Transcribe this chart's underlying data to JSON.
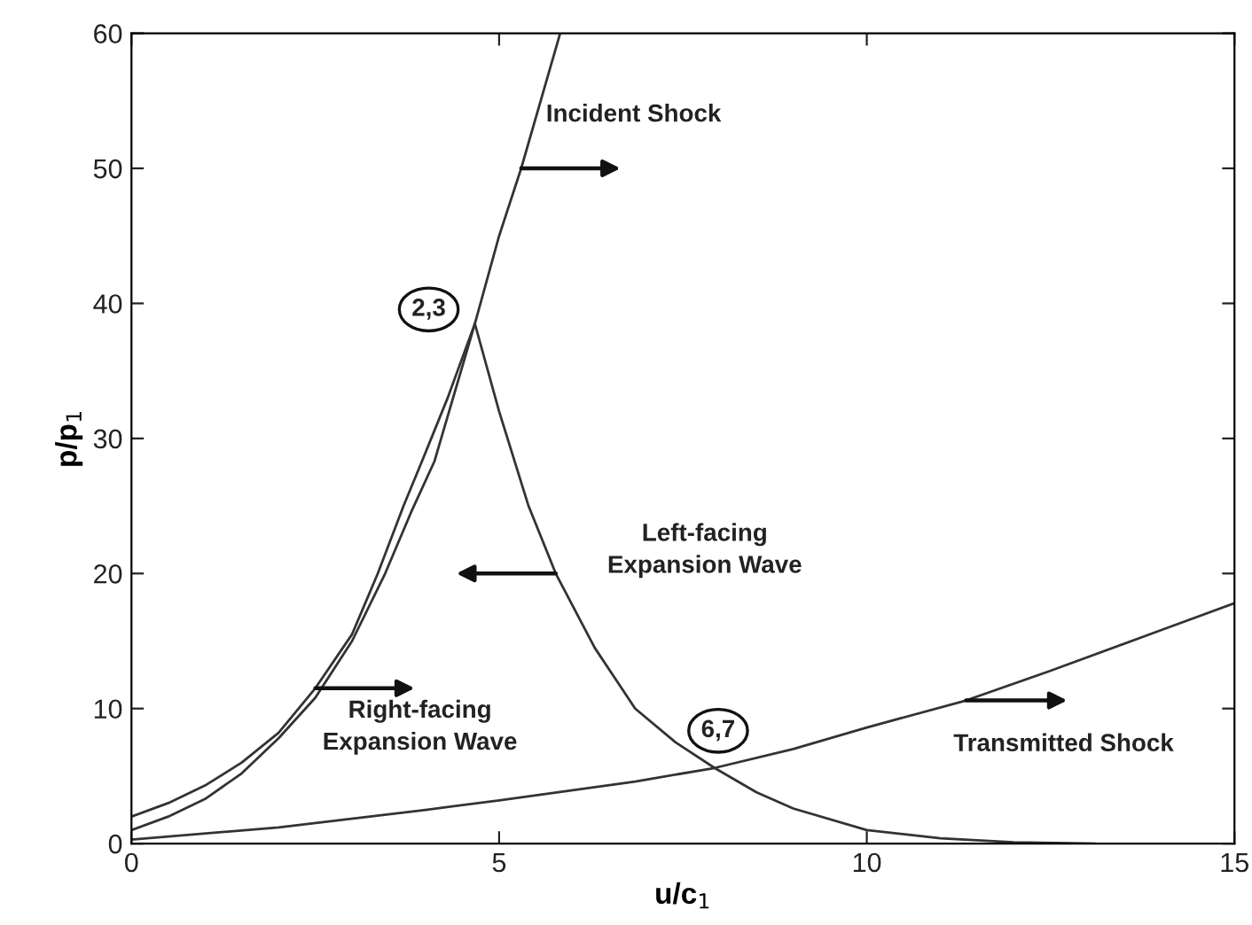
{
  "chart_data": {
    "type": "line",
    "xlabel": "u/c$_{1}$",
    "ylabel": "p/p$_{1}$",
    "xlim": [
      0,
      15
    ],
    "ylim": [
      0,
      60
    ],
    "xticks": [
      0,
      5,
      10,
      15
    ],
    "yticks": [
      0,
      10,
      20,
      30,
      40,
      50,
      60
    ],
    "series": [
      {
        "color": "#333333",
        "x": [
          0,
          0.5,
          1,
          1.5,
          2,
          2.5,
          3,
          3.45,
          3.8,
          4.12,
          4.67,
          5,
          5.3,
          5.83
        ],
        "values": [
          1,
          2,
          3.3,
          5.2,
          7.8,
          10.8,
          15,
          20,
          24.5,
          28.3,
          38.5,
          45,
          50,
          60
        ]
      },
      {
        "color": "#333333",
        "x": [
          0,
          0.5,
          1,
          1.5,
          2,
          2.5,
          3,
          3.35,
          3.7,
          3.95,
          4.3,
          4.67
        ],
        "values": [
          2,
          3,
          4.3,
          6,
          8.2,
          11.5,
          15.5,
          20,
          25,
          28.3,
          33,
          38.5
        ]
      },
      {
        "color": "#333333",
        "x": [
          4.67,
          5,
          5.4,
          5.77,
          6.3,
          6.85,
          7.4,
          7.93,
          8.5,
          9,
          10,
          11,
          12,
          13.1
        ],
        "values": [
          38.5,
          32,
          25,
          20,
          14.5,
          10,
          7.5,
          5.6,
          3.8,
          2.6,
          1,
          0.4,
          0.1,
          0
        ]
      },
      {
        "color": "#333333",
        "x": [
          0,
          2,
          4,
          5,
          6.85,
          7.93,
          9,
          10,
          11.35,
          12.5,
          14,
          15
        ],
        "values": [
          0.3,
          1.2,
          2.5,
          3.2,
          4.6,
          5.6,
          7,
          8.6,
          10.6,
          12.8,
          15.8,
          17.8
        ]
      }
    ],
    "annotations": [
      {
        "text": "Incident Shock",
        "x": 5.3,
        "y": 50
      },
      {
        "text": "Left-facing\nExpansion Wave",
        "x": 5.77,
        "y": 20
      },
      {
        "text": "Right-facing\nExpansion Wave",
        "x": 2.5,
        "y": 11.5
      },
      {
        "text": "Transmitted Shock",
        "x": 11.35,
        "y": 10.6
      },
      {
        "text": "2,3",
        "x": 4.67,
        "y": 38.5
      },
      {
        "text": "6,7",
        "x": 7.93,
        "y": 5.6
      }
    ]
  }
}
